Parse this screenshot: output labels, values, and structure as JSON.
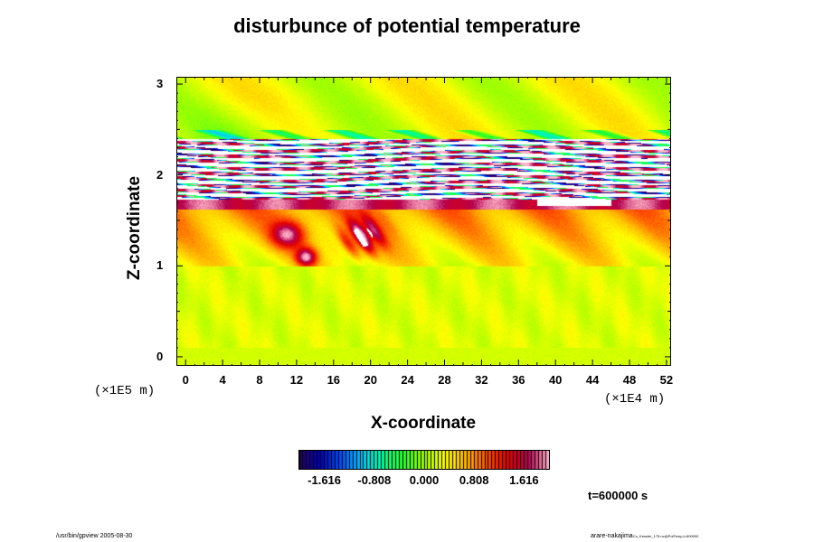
{
  "chart_data": {
    "type": "heatmap",
    "title": "disturbunce of potential temperature",
    "xlabel": "X-coordinate",
    "ylabel": "Z-coordinate",
    "x_ticks": [
      "0",
      "4",
      "8",
      "12",
      "16",
      "20",
      "24",
      "28",
      "32",
      "36",
      "40",
      "44",
      "48",
      "52"
    ],
    "y_ticks": [
      "0",
      "1",
      "2",
      "3"
    ],
    "xlim": [
      -1,
      52.5
    ],
    "ylim": [
      -0.1,
      3.08
    ],
    "x_scale_note": "(×1E4 m)",
    "y_scale_note": "(×1E5 m)",
    "colorbar": {
      "range": [
        -2.02,
        2.02
      ],
      "tick_labels": [
        "-1.616",
        "-0.808",
        "0.000",
        "0.808",
        "1.616"
      ],
      "tick_values": [
        -1.616,
        -0.808,
        0.0,
        0.808,
        1.616
      ],
      "colors": [
        "#2a0060",
        "#0000b4",
        "#0050ff",
        "#00c8ff",
        "#00ffa0",
        "#28ff28",
        "#a0ff00",
        "#ffff00",
        "#ffb400",
        "#ff5000",
        "#e60000",
        "#b40050",
        "#ffb4c8"
      ]
    },
    "time_label": "t=600000 s",
    "regions": [
      {
        "z_range": [
          1.73,
          2.38
        ],
        "description_value": "saturated band exceeding colour range"
      },
      {
        "z_range": [
          1.0,
          1.7
        ],
        "value": 0.9
      },
      {
        "z_range": [
          -0.1,
          1.0
        ],
        "value": 0.25
      },
      {
        "z_range": [
          2.4,
          3.08
        ],
        "value": 0.2
      }
    ]
  },
  "footer": {
    "left": "/usr/bin/gpview 2005-08-30",
    "right_main": "arare-nakajima",
    "right_small": "Co_Kessler_175.nc@PotTemp,t=600000"
  }
}
